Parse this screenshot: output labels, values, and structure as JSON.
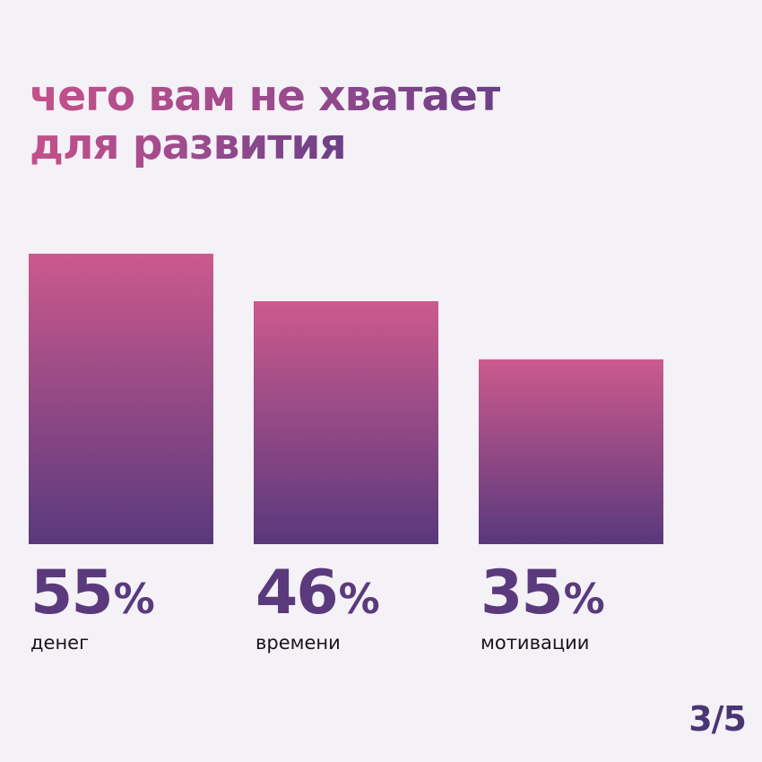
{
  "title": {
    "line1": "чего вам не хватает",
    "line2": "для развития"
  },
  "page_counter": "3/5",
  "colors": {
    "background": "#f4f1f7",
    "bar_top": "#cc5a8d",
    "bar_bottom": "#59397c",
    "value_text": "#5a3a7c"
  },
  "chart_data": {
    "type": "bar",
    "categories": [
      "денег",
      "времени",
      "мотивации"
    ],
    "values": [
      55,
      46,
      35
    ],
    "value_labels": [
      "55",
      "46",
      "35"
    ],
    "unit": "%",
    "title": "чего вам не хватает для развития",
    "xlabel": "",
    "ylabel": "",
    "ylim": [
      0,
      55
    ],
    "grid": false,
    "legend": "none"
  }
}
